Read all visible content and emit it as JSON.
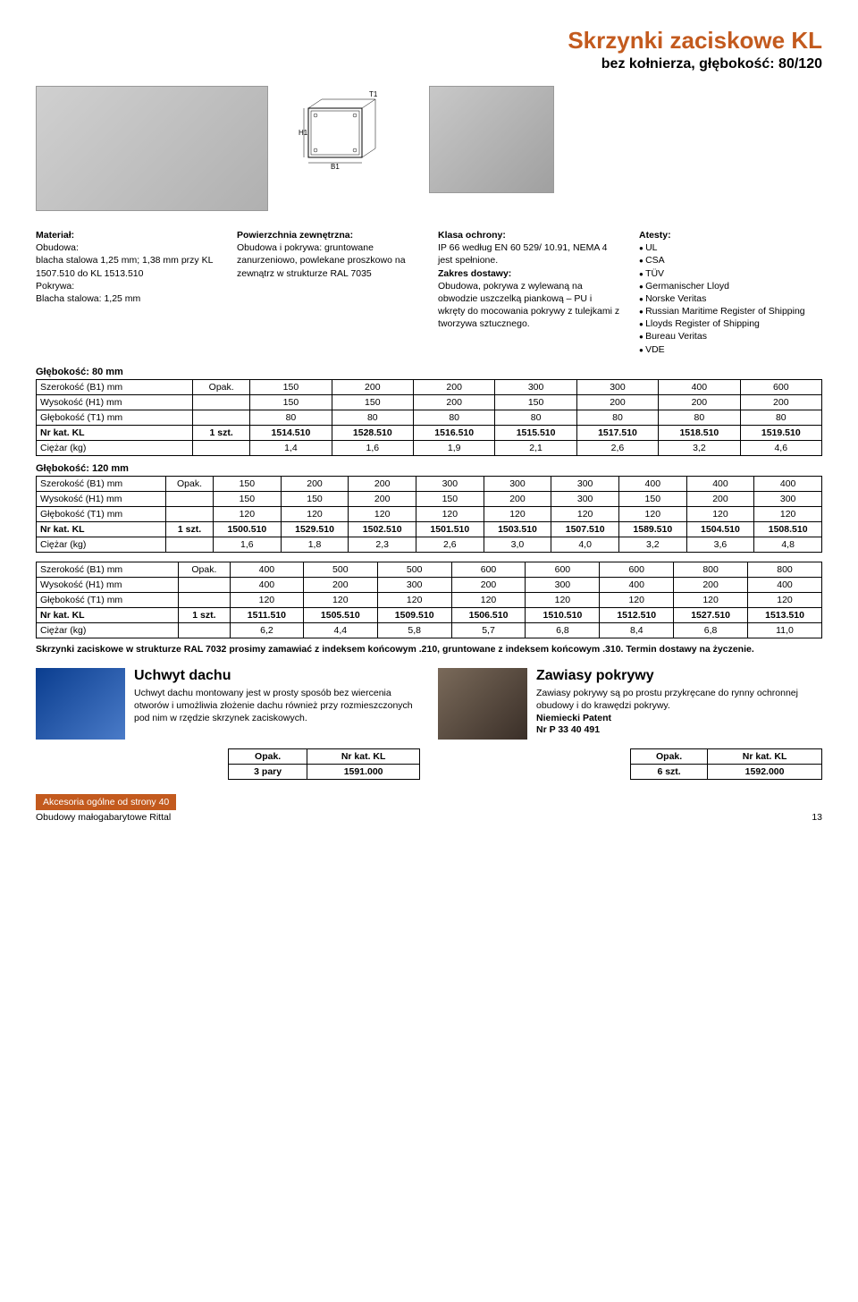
{
  "title": {
    "main": "Skrzynki zaciskowe KL",
    "sub": "bez kołnierza, głębokość: 80/120"
  },
  "diagram_labels": {
    "h1": "H1",
    "b1": "B1",
    "t1": "T1"
  },
  "specs": {
    "material": {
      "heading": "Materiał:",
      "body_label": "Obudowa:",
      "body_text": "blacha stalowa 1,25 mm; 1,38 mm przy KL 1507.510 do KL 1513.510",
      "cover_label": "Pokrywa:",
      "cover_text": "Blacha stalowa: 1,25 mm"
    },
    "surface": {
      "heading": "Powierzchnia zewnętrzna:",
      "text": "Obudowa i pokrywa: gruntowane zanurzeniowo, powlekane proszkowo na zewnątrz w strukturze RAL 7035"
    },
    "protection": {
      "heading": "Klasa ochrony:",
      "text": "IP 66 według EN 60 529/ 10.91, NEMA 4 jest spełnione.",
      "scope_heading": "Zakres dostawy:",
      "scope_text": "Obudowa, pokrywa z wylewaną na obwodzie uszczelką piankową – PU i wkręty do mocowania pokrywy z tulejkami z tworzywa sztucznego."
    },
    "certs": {
      "heading": "Atesty:",
      "items": [
        "UL",
        "CSA",
        "TÜV",
        "Germanischer Lloyd",
        "Norske Veritas",
        "Russian Maritime Register of Shipping",
        "Lloyds Register of Shipping",
        "Bureau Veritas",
        "VDE"
      ]
    }
  },
  "table80": {
    "label": "Głębokość: 80 mm",
    "rows": [
      {
        "label": "Szerokość (B1) mm",
        "pack": "Opak.",
        "vals": [
          "150",
          "200",
          "200",
          "300",
          "300",
          "400",
          "600"
        ]
      },
      {
        "label": "Wysokość (H1) mm",
        "pack": "",
        "vals": [
          "150",
          "150",
          "200",
          "150",
          "200",
          "200",
          "200"
        ]
      },
      {
        "label": "Głębokość (T1) mm",
        "pack": "",
        "vals": [
          "80",
          "80",
          "80",
          "80",
          "80",
          "80",
          "80"
        ]
      },
      {
        "label": "Nr kat. KL",
        "pack": "1 szt.",
        "vals": [
          "1514.510",
          "1528.510",
          "1516.510",
          "1515.510",
          "1517.510",
          "1518.510",
          "1519.510"
        ],
        "bold": true
      },
      {
        "label": "Ciężar (kg)",
        "pack": "",
        "vals": [
          "1,4",
          "1,6",
          "1,9",
          "2,1",
          "2,6",
          "3,2",
          "4,6"
        ]
      }
    ]
  },
  "table120a": {
    "label": "Głębokość: 120 mm",
    "rows": [
      {
        "label": "Szerokość (B1) mm",
        "pack": "Opak.",
        "vals": [
          "150",
          "200",
          "200",
          "300",
          "300",
          "300",
          "400",
          "400",
          "400"
        ]
      },
      {
        "label": "Wysokość (H1) mm",
        "pack": "",
        "vals": [
          "150",
          "150",
          "200",
          "150",
          "200",
          "300",
          "150",
          "200",
          "300"
        ]
      },
      {
        "label": "Głębokość (T1) mm",
        "pack": "",
        "vals": [
          "120",
          "120",
          "120",
          "120",
          "120",
          "120",
          "120",
          "120",
          "120"
        ]
      },
      {
        "label": "Nr kat. KL",
        "pack": "1 szt.",
        "vals": [
          "1500.510",
          "1529.510",
          "1502.510",
          "1501.510",
          "1503.510",
          "1507.510",
          "1589.510",
          "1504.510",
          "1508.510"
        ],
        "bold": true
      },
      {
        "label": "Ciężar (kg)",
        "pack": "",
        "vals": [
          "1,6",
          "1,8",
          "2,3",
          "2,6",
          "3,0",
          "4,0",
          "3,2",
          "3,6",
          "4,8"
        ]
      }
    ]
  },
  "table120b": {
    "rows": [
      {
        "label": "Szerokość (B1) mm",
        "pack": "Opak.",
        "vals": [
          "400",
          "500",
          "500",
          "600",
          "600",
          "600",
          "800",
          "800"
        ]
      },
      {
        "label": "Wysokość (H1) mm",
        "pack": "",
        "vals": [
          "400",
          "200",
          "300",
          "200",
          "300",
          "400",
          "200",
          "400"
        ]
      },
      {
        "label": "Głębokość (T1) mm",
        "pack": "",
        "vals": [
          "120",
          "120",
          "120",
          "120",
          "120",
          "120",
          "120",
          "120"
        ]
      },
      {
        "label": "Nr kat. KL",
        "pack": "1 szt.",
        "vals": [
          "1511.510",
          "1505.510",
          "1509.510",
          "1506.510",
          "1510.510",
          "1512.510",
          "1527.510",
          "1513.510"
        ],
        "bold": true
      },
      {
        "label": "Ciężar (kg)",
        "pack": "",
        "vals": [
          "6,2",
          "4,4",
          "5,8",
          "5,7",
          "6,8",
          "8,4",
          "6,8",
          "11,0"
        ]
      }
    ]
  },
  "note_text": "Skrzynki zaciskowe w strukturze RAL 7032 prosimy zamawiać z indeksem końcowym .210, gruntowane z indeksem końcowym .310. Termin dostawy na życzenie.",
  "acc1": {
    "title": "Uchwyt dachu",
    "text": "Uchwyt dachu montowany jest w prosty sposób bez wiercenia otworów i umożliwia złożenie dachu również przy rozmieszczonych pod nim w rzędzie skrzynek zaciskowych.",
    "table": {
      "h1": "Opak.",
      "h2": "Nr kat. KL",
      "v1": "3 pary",
      "v2": "1591.000"
    }
  },
  "acc2": {
    "title": "Zawiasy pokrywy",
    "text": "Zawiasy pokrywy są po prostu przykręcane do rynny ochronnej obudowy i do krawędzi pokrywy.",
    "patent_label": "Niemiecki Patent",
    "patent_no": "Nr P 33 40 491",
    "table": {
      "h1": "Opak.",
      "h2": "Nr kat. KL",
      "v1": "6 szt.",
      "v2": "1592.000"
    }
  },
  "footer": {
    "accessories": "Akcesoria ogólne od strony 40",
    "bottom_left": "Obudowy małogabarytowe Rittal",
    "page_no": "13"
  },
  "colors": {
    "accent": "#C35A1E"
  }
}
